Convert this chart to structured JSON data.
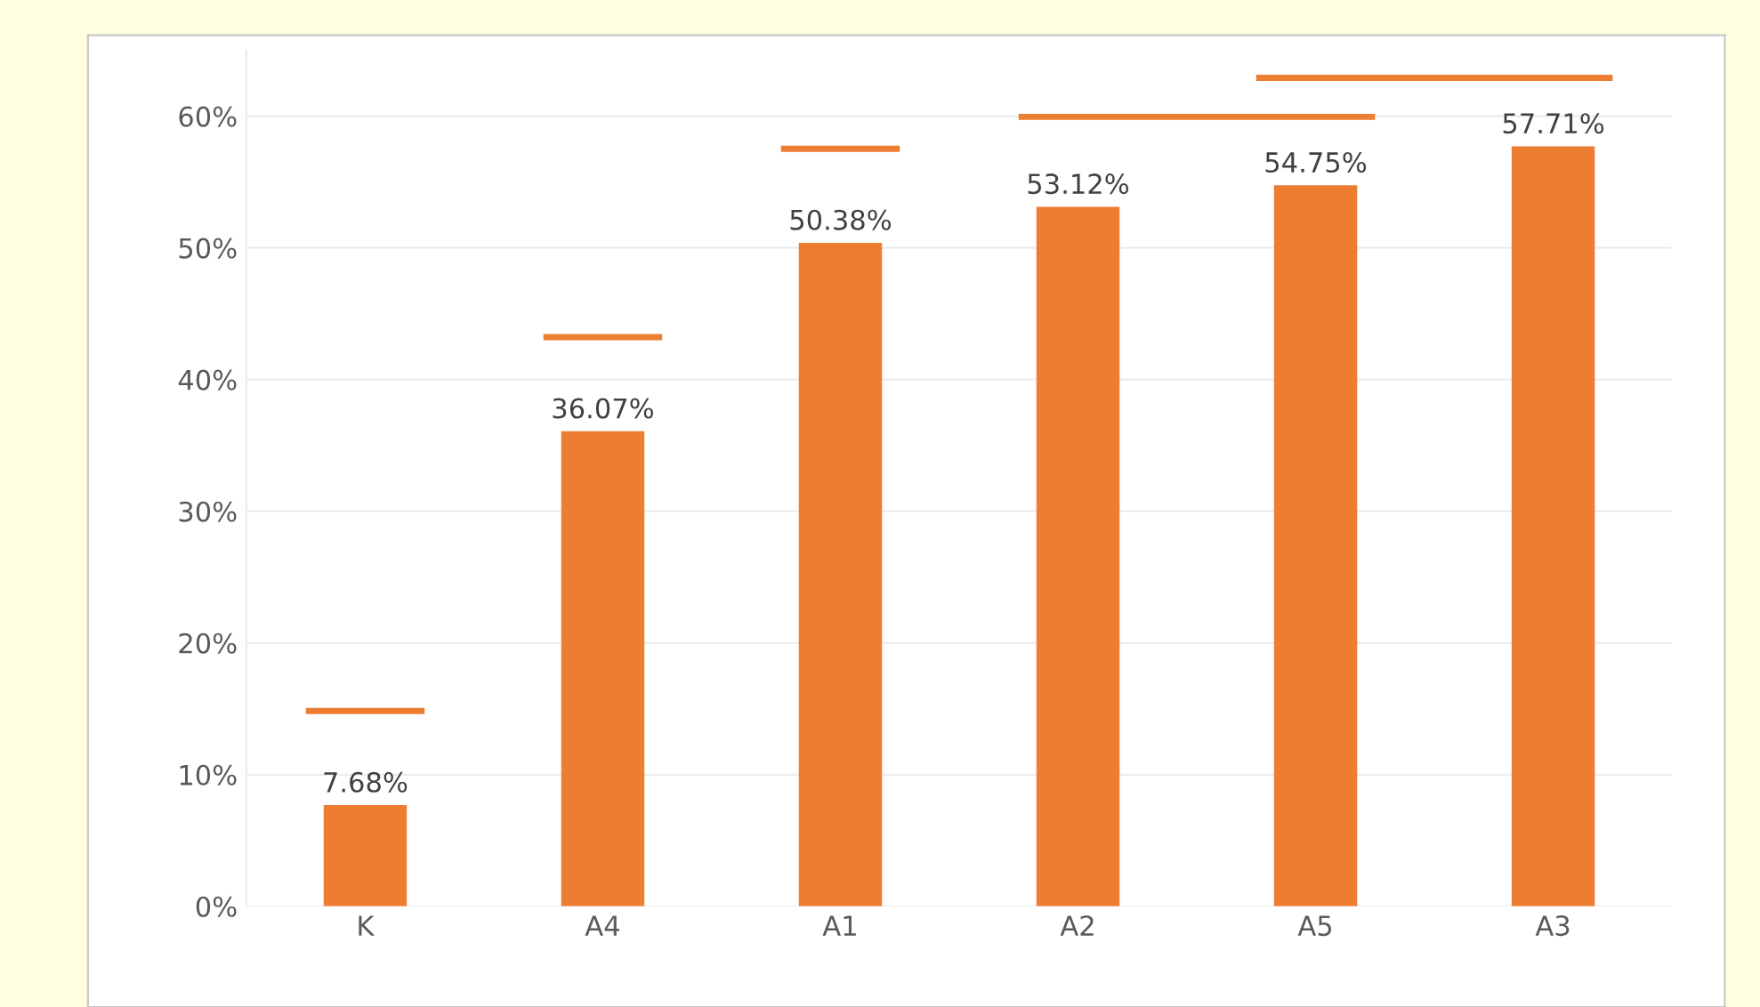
{
  "chart_data": {
    "type": "bar",
    "categories": [
      "K",
      "A4",
      "A1",
      "A2",
      "A5",
      "A3"
    ],
    "values": [
      7.68,
      36.07,
      50.38,
      53.12,
      54.75,
      57.71
    ],
    "value_labels": [
      "7.68%",
      "36.07%",
      "50.38%",
      "53.12%",
      "54.75%",
      "57.71%"
    ],
    "color": "#ed7d31",
    "ylim": [
      0,
      65
    ],
    "yticks": [
      {
        "value": 0,
        "label": "0%"
      },
      {
        "value": 10,
        "label": "10%"
      },
      {
        "value": 20,
        "label": "20%"
      },
      {
        "value": 30,
        "label": "30%"
      },
      {
        "value": 40,
        "label": "40%"
      },
      {
        "value": 50,
        "label": "50%"
      },
      {
        "value": 60,
        "label": "60%"
      }
    ],
    "grid": "y",
    "legend": false
  }
}
